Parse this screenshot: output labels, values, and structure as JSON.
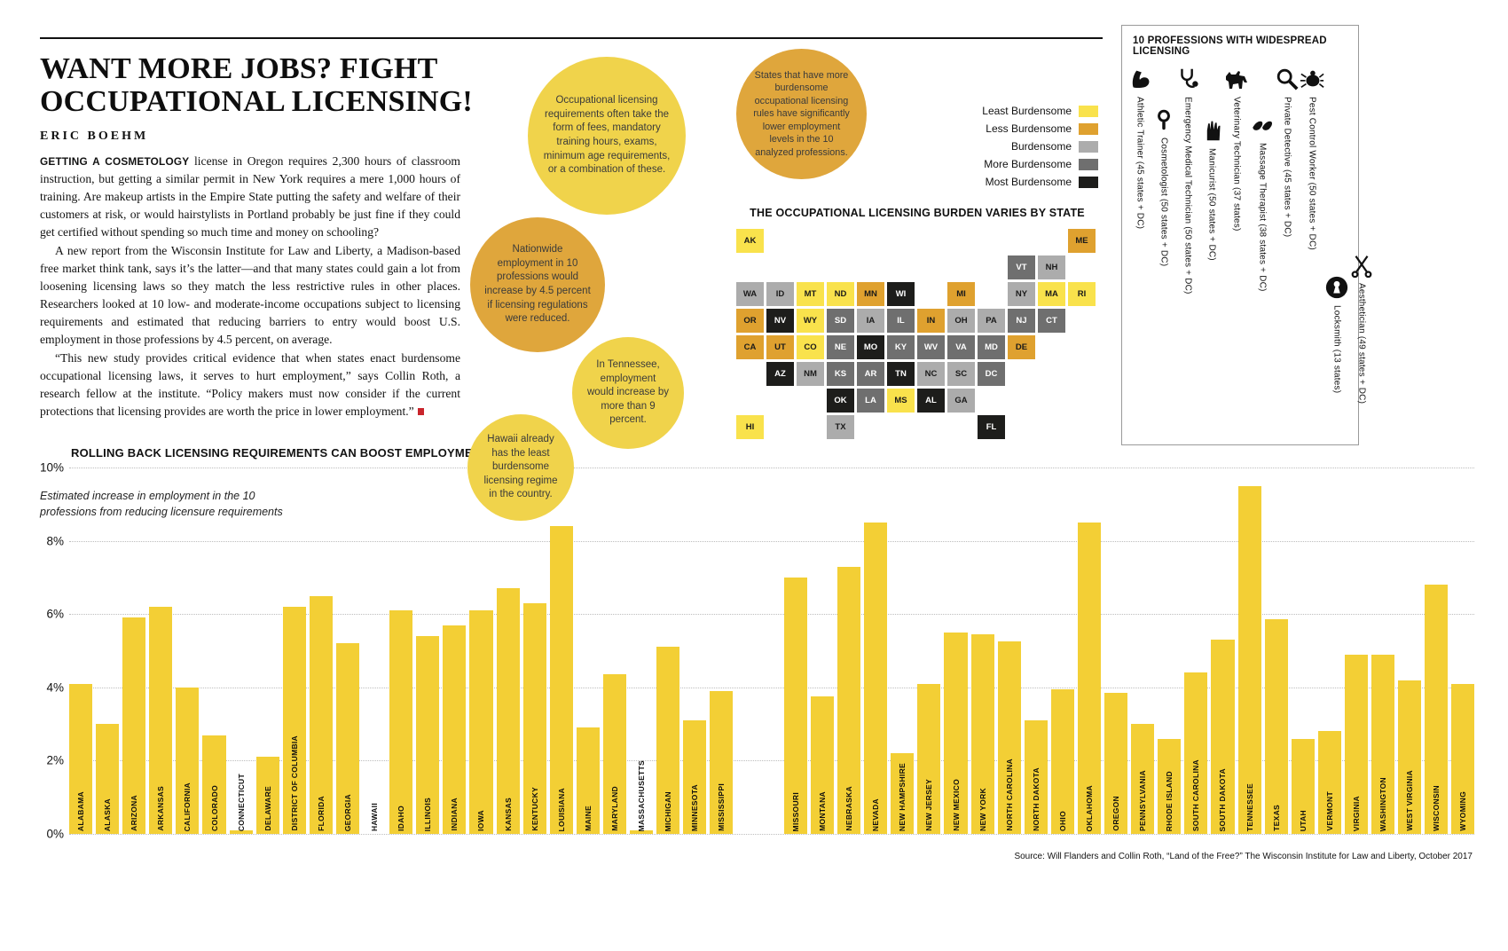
{
  "header": {
    "title_line1": "WANT MORE JOBS? FIGHT",
    "title_line2": "OCCUPATIONAL LICENSING!",
    "byline": "ERIC BOEHM"
  },
  "article": {
    "p1_lead": "GETTING A COSMETOLOGY",
    "p1_rest": " license in Oregon requires 2,300 hours of classroom instruction, but getting a similar permit in New York requires a mere 1,000 hours of training. Are makeup artists in the Empire State putting the safety and welfare of their customers at risk, or would hairstylists in Portland probably be just fine if they could get certified without spending so much time and money on schooling?",
    "p2": "A new report from the Wisconsin Institute for Law and Liberty, a Madison-based free market think tank, says it’s the latter—and that many states could gain a lot from loosening licensing laws so they match the less restrictive rules in other places. Researchers looked at 10 low- and moderate-income occupations subject to licensing requirements and estimated that reducing barriers to entry would boost U.S. employment in those professions by 4.5 percent, on average.",
    "p3": "“This new study provides critical evidence that when states enact burdensome occupational licensing laws, it serves to hurt employment,” says Collin Roth, a research fellow at the institute. “Policy makers must now consider if the current protections that licensing provides are worth the price in lower employment.”",
    "end_mark_color": "#c9252c"
  },
  "callouts": [
    {
      "text": "Occupational licensing requirements often take the form of fees, mandatory training hours, exams, minimum age requirements, or a combination of these.",
      "color": "#F0D34B"
    },
    {
      "text": "States that have more burdensome occupational licensing rules have significantly lower employment levels in the 10 analyzed professions.",
      "color": "#DFA63C"
    },
    {
      "text": "Nationwide employment in 10 professions would increase by 4.5 percent if licensing regulations were reduced.",
      "color": "#DFA63C"
    },
    {
      "text": "In Tennessee, employment would increase by more than 9 percent.",
      "color": "#F0D34B"
    },
    {
      "text": "Hawaii already has the least burdensome licensing regime in the country.",
      "color": "#F0D34B"
    }
  ],
  "map": {
    "title": "THE OCCUPATIONAL LICENSING BURDEN VARIES BY STATE",
    "legend": [
      {
        "label": "Least Burdensome",
        "color": "#F9E24C"
      },
      {
        "label": "Less Burdensome",
        "color": "#DFA12F"
      },
      {
        "label": "Burdensome",
        "color": "#ACACAC"
      },
      {
        "label": "More Burdensome",
        "color": "#6F6F6F"
      },
      {
        "label": "Most Burdensome",
        "color": "#1D1D1B"
      }
    ],
    "burden_colors": {
      "least": "#F9E24C",
      "less": "#DFA12F",
      "burdensome": "#ACACAC",
      "more": "#6F6F6F",
      "most": "#1D1D1B"
    },
    "states": [
      {
        "abbr": "WA",
        "burden": "burdensome"
      },
      {
        "abbr": "OR",
        "burden": "less"
      },
      {
        "abbr": "CA",
        "burden": "less"
      },
      {
        "abbr": "NV",
        "burden": "most"
      },
      {
        "abbr": "ID",
        "burden": "burdensome"
      },
      {
        "abbr": "MT",
        "burden": "least"
      },
      {
        "abbr": "WY",
        "burden": "least"
      },
      {
        "abbr": "UT",
        "burden": "less"
      },
      {
        "abbr": "CO",
        "burden": "least"
      },
      {
        "abbr": "AZ",
        "burden": "most"
      },
      {
        "abbr": "NM",
        "burden": "burdensome"
      },
      {
        "abbr": "ND",
        "burden": "least"
      },
      {
        "abbr": "SD",
        "burden": "more"
      },
      {
        "abbr": "NE",
        "burden": "more"
      },
      {
        "abbr": "KS",
        "burden": "more"
      },
      {
        "abbr": "OK",
        "burden": "most"
      },
      {
        "abbr": "TX",
        "burden": "burdensome"
      },
      {
        "abbr": "MN",
        "burden": "less"
      },
      {
        "abbr": "IA",
        "burden": "burdensome"
      },
      {
        "abbr": "MO",
        "burden": "most"
      },
      {
        "abbr": "AR",
        "burden": "more"
      },
      {
        "abbr": "LA",
        "burden": "more"
      },
      {
        "abbr": "WI",
        "burden": "most"
      },
      {
        "abbr": "IL",
        "burden": "more"
      },
      {
        "abbr": "MI",
        "burden": "less"
      },
      {
        "abbr": "IN",
        "burden": "less"
      },
      {
        "abbr": "OH",
        "burden": "burdensome"
      },
      {
        "abbr": "KY",
        "burden": "more"
      },
      {
        "abbr": "TN",
        "burden": "most"
      },
      {
        "abbr": "MS",
        "burden": "least"
      },
      {
        "abbr": "AL",
        "burden": "most"
      },
      {
        "abbr": "GA",
        "burden": "burdensome"
      },
      {
        "abbr": "FL",
        "burden": "most"
      },
      {
        "abbr": "SC",
        "burden": "burdensome"
      },
      {
        "abbr": "NC",
        "burden": "burdensome"
      },
      {
        "abbr": "VA",
        "burden": "more"
      },
      {
        "abbr": "WV",
        "burden": "more"
      },
      {
        "abbr": "MD",
        "burden": "more"
      },
      {
        "abbr": "DE",
        "burden": "less"
      },
      {
        "abbr": "PA",
        "burden": "burdensome"
      },
      {
        "abbr": "NY",
        "burden": "burdensome"
      },
      {
        "abbr": "NJ",
        "burden": "more"
      },
      {
        "abbr": "CT",
        "burden": "more"
      },
      {
        "abbr": "RI",
        "burden": "least"
      },
      {
        "abbr": "MA",
        "burden": "least"
      },
      {
        "abbr": "VT",
        "burden": "more"
      },
      {
        "abbr": "NH",
        "burden": "burdensome"
      },
      {
        "abbr": "ME",
        "burden": "less"
      },
      {
        "abbr": "AK",
        "burden": "least"
      },
      {
        "abbr": "HI",
        "burden": "least"
      },
      {
        "abbr": "DC",
        "burden": "more"
      }
    ]
  },
  "professions_panel": {
    "title": "10 PROFESSIONS WITH WIDESPREAD LICENSING",
    "items": [
      {
        "label": "Athletic Trainer (45 states + DC)",
        "icon": "flexed-arm-icon"
      },
      {
        "label": "Cosmetologist (50 states + DC)",
        "icon": "hand-mirror-icon"
      },
      {
        "label": "Emergency Medical Technician (50 states + DC)",
        "icon": "stethoscope-icon"
      },
      {
        "label": "Manicurist (50 states + DC)",
        "icon": "manicure-hand-icon"
      },
      {
        "label": "Veterinary Technician (37 states)",
        "icon": "dog-icon"
      },
      {
        "label": "Massage Therapist (38 states + DC)",
        "icon": "massage-hands-icon"
      },
      {
        "label": "Private Detective (45 states + DC)",
        "icon": "magnifying-glass-icon"
      },
      {
        "label": "Pest Control Worker (50 states + DC)",
        "icon": "bug-icon"
      },
      {
        "label": "Locksmith (13 states)",
        "icon": "keyhole-icon"
      },
      {
        "label": "Aesthetician (49 states + DC)",
        "icon": "scissors-icon"
      }
    ]
  },
  "chart_data": {
    "type": "bar",
    "title": "ROLLING BACK LICENSING REQUIREMENTS CAN BOOST EMPLOYMENT",
    "subtitle": "Estimated increase in employment in the 10 professions from reducing licensure requirements",
    "xlabel": "",
    "ylabel": "",
    "ylim": [
      0,
      10
    ],
    "ylabel_ticks": [
      "0%",
      "2%",
      "4%",
      "6%",
      "8%",
      "10%"
    ],
    "grid": "dotted-horizontal",
    "bar_color": "#F3CF35",
    "gap_after": "MISSISSIPPI",
    "categories": [
      "ALABAMA",
      "ALASKA",
      "ARIZONA",
      "ARKANSAS",
      "CALIFORNIA",
      "COLORADO",
      "CONNECTICUT",
      "DELAWARE",
      "DISTRICT OF COLUMBIA",
      "FLORIDA",
      "GEORGIA",
      "HAWAII",
      "IDAHO",
      "ILLINOIS",
      "INDIANA",
      "IOWA",
      "KANSAS",
      "KENTUCKY",
      "LOUISIANA",
      "MAINE",
      "MARYLAND",
      "MASSACHUSETTS",
      "MICHIGAN",
      "MINNESOTA",
      "MISSISSIPPI",
      "MISSOURI",
      "MONTANA",
      "NEBRASKA",
      "NEVADA",
      "NEW HAMPSHIRE",
      "NEW JERSEY",
      "NEW MEXICO",
      "NEW YORK",
      "NORTH CAROLINA",
      "NORTH DAKOTA",
      "OHIO",
      "OKLAHOMA",
      "OREGON",
      "PENNSYLVANIA",
      "RHODE ISLAND",
      "SOUTH CAROLINA",
      "SOUTH DAKOTA",
      "TENNESSEE",
      "TEXAS",
      "UTAH",
      "VERMONT",
      "VIRGINIA",
      "WASHINGTON",
      "WEST VIRGINIA",
      "WISCONSIN",
      "WYOMING"
    ],
    "values": [
      4.1,
      3.0,
      5.9,
      6.2,
      4.0,
      2.7,
      0.1,
      2.1,
      6.2,
      6.5,
      5.2,
      0,
      6.1,
      5.4,
      5.7,
      6.1,
      6.7,
      6.3,
      8.4,
      2.9,
      4.35,
      0.1,
      5.1,
      3.1,
      3.9,
      7.0,
      3.75,
      7.3,
      8.5,
      2.2,
      4.1,
      5.5,
      5.45,
      5.25,
      3.1,
      3.95,
      8.5,
      3.85,
      3.0,
      2.6,
      4.4,
      5.3,
      9.5,
      5.85,
      2.6,
      2.8,
      4.9,
      4.9,
      4.2,
      6.8,
      4.1
    ]
  },
  "source": "Source: Will Flanders and Collin Roth, “Land of the Free?” The Wisconsin Institute for Law and Liberty, October 2017"
}
